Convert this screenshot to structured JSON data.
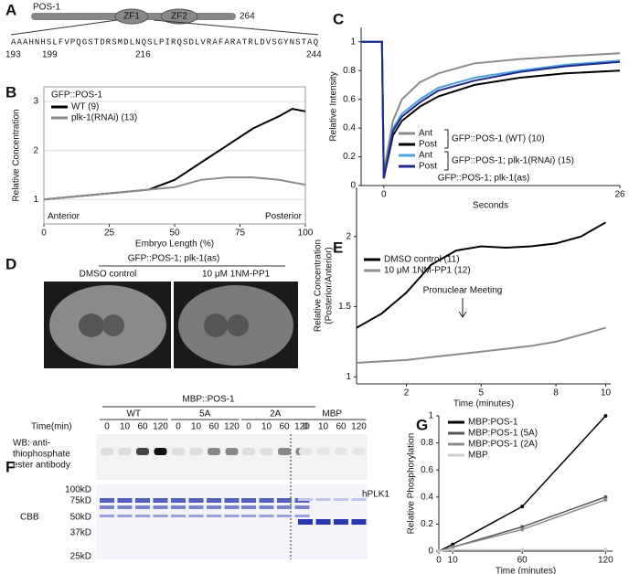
{
  "panel_labels": [
    "A",
    "B",
    "C",
    "D",
    "E",
    "F",
    "G"
  ],
  "panel_a": {
    "protein": "POS-1",
    "domains": [
      "ZF1",
      "ZF2"
    ],
    "length": "264",
    "sequence": "AAAHNHSLFVPQGSTDRSMDLNQSLPIRQSDLVRAFARATRLDVSGYNSTAQ",
    "positions": [
      "193",
      "199",
      "216",
      "244"
    ]
  },
  "panel_d": {
    "title": "GFP::POS-1; plk-1(as)",
    "conditions": [
      "DMSO control",
      "10 μM 1NM-PP1"
    ]
  },
  "panel_f": {
    "title": "MBP::POS-1",
    "groups": [
      "WT",
      "5A",
      "2A",
      "MBP"
    ],
    "time_label": "Time(min)",
    "times": [
      "0",
      "10",
      "60",
      "120"
    ],
    "wb_label": [
      "WB: anti-",
      "thiophosphate",
      "ester antibody"
    ],
    "cbb_label": "CBB",
    "markers": [
      "100kD",
      "75kD",
      "50kD",
      "37kD",
      "25kD"
    ],
    "band_label": "hPLK1"
  },
  "chart_data": [
    {
      "type": "line",
      "x_label": "Embryo Length (%)",
      "y_label": [
        "Relative Concentration"
      ],
      "legend_title": "GFP::POS-1",
      "annotations": [
        "Anterior",
        "Posterior"
      ],
      "grid": true,
      "x": [
        0,
        10,
        20,
        30,
        40,
        50,
        60,
        70,
        80,
        90,
        95,
        100
      ],
      "xlim": [
        0,
        100
      ],
      "xticks": [
        0,
        25,
        50,
        75,
        100
      ],
      "ylim": [
        0.5,
        3.3
      ],
      "yticks": [
        1,
        2,
        3
      ],
      "series": [
        {
          "name": "WT (9)",
          "color": "#000000",
          "values": [
            1,
            1.05,
            1.1,
            1.15,
            1.2,
            1.4,
            1.75,
            2.1,
            2.45,
            2.7,
            2.85,
            2.8
          ]
        },
        {
          "name": "plk-1(RNAi) (13)",
          "color": "#8c8c8c",
          "values": [
            1,
            1.05,
            1.1,
            1.15,
            1.2,
            1.25,
            1.4,
            1.45,
            1.45,
            1.4,
            1.35,
            1.3
          ]
        }
      ]
    },
    {
      "type": "line",
      "x_label": "Seconds",
      "y_label": [
        "Relative Intensity"
      ],
      "grid": false,
      "legend_groups": [
        "GFP::POS-1 (WT) (10)",
        "GFP::POS-1; plk-1(RNAi) (15)"
      ],
      "x": [
        -2.5,
        -1,
        -0.2,
        0,
        1,
        2,
        4,
        6,
        10,
        15,
        20,
        26
      ],
      "xlim": [
        -2.5,
        26
      ],
      "xticks": [
        0,
        26
      ],
      "ylim": [
        0,
        1.1
      ],
      "yticks": [
        0,
        0.2,
        0.4,
        0.6,
        0.8,
        1
      ],
      "series": [
        {
          "name": "Ant",
          "color": "#8c8c8c",
          "values": [
            1,
            1,
            1,
            0.1,
            0.45,
            0.6,
            0.72,
            0.78,
            0.85,
            0.88,
            0.9,
            0.92
          ]
        },
        {
          "name": "Post",
          "color": "#000000",
          "values": [
            1,
            1,
            1,
            0.05,
            0.35,
            0.45,
            0.55,
            0.62,
            0.7,
            0.75,
            0.78,
            0.8
          ]
        },
        {
          "name": "Ant",
          "color": "#4aa3df",
          "values": [
            1,
            1,
            1,
            0.05,
            0.4,
            0.5,
            0.6,
            0.68,
            0.75,
            0.8,
            0.84,
            0.87
          ]
        },
        {
          "name": "Post",
          "color": "#1f2a8a",
          "values": [
            1,
            1,
            1,
            0.05,
            0.38,
            0.48,
            0.58,
            0.66,
            0.73,
            0.79,
            0.83,
            0.86
          ]
        }
      ]
    },
    {
      "type": "line",
      "title": "GFP::POS-1; plk-1(as)",
      "x_label": "Time (minutes)",
      "y_label": [
        "Relative Concentration",
        "(Posterior/Anterior)"
      ],
      "annotations": [
        "Pronuclear Meeting"
      ],
      "grid": false,
      "x": [
        0,
        1,
        2,
        3,
        4,
        5,
        6,
        7,
        8,
        9,
        10
      ],
      "xlim": [
        0,
        10.2
      ],
      "xticks": [
        2,
        5,
        8,
        10
      ],
      "ylim": [
        0.95,
        2.35
      ],
      "yticks": [
        1,
        1.5,
        2
      ],
      "series": [
        {
          "name": "DMSO control (11)",
          "color": "#000000",
          "values": [
            1.35,
            1.45,
            1.6,
            1.8,
            1.9,
            1.93,
            1.92,
            1.93,
            1.95,
            2.0,
            2.1
          ]
        },
        {
          "name": "10 μM 1NM-PP1 (12)",
          "color": "#8c8c8c",
          "values": [
            1.1,
            1.11,
            1.12,
            1.14,
            1.16,
            1.18,
            1.2,
            1.22,
            1.25,
            1.3,
            1.35
          ]
        }
      ]
    },
    {
      "type": "line",
      "x_label": "Time (minutes)",
      "y_label": [
        "Relative Phosphorylation"
      ],
      "grid": false,
      "x": [
        0,
        10,
        60,
        120
      ],
      "xlim": [
        0,
        125
      ],
      "xticks": [
        0,
        10,
        60,
        120
      ],
      "ylim": [
        0,
        1
      ],
      "yticks": [
        0,
        0.2,
        0.4,
        0.6,
        0.8,
        1
      ],
      "series": [
        {
          "name": "MBP:POS-1",
          "color": "#000000",
          "values": [
            0,
            0.05,
            0.33,
            1
          ]
        },
        {
          "name": "MBP:POS-1 (5A)",
          "color": "#555555",
          "values": [
            0,
            0.03,
            0.18,
            0.4
          ]
        },
        {
          "name": "MBP:POS-1 (2A)",
          "color": "#8c8c8c",
          "values": [
            0,
            0.03,
            0.16,
            0.38
          ]
        },
        {
          "name": "MBP",
          "color": "#cccccc",
          "values": [
            0,
            0.01,
            0.01,
            0.01
          ]
        }
      ]
    }
  ]
}
